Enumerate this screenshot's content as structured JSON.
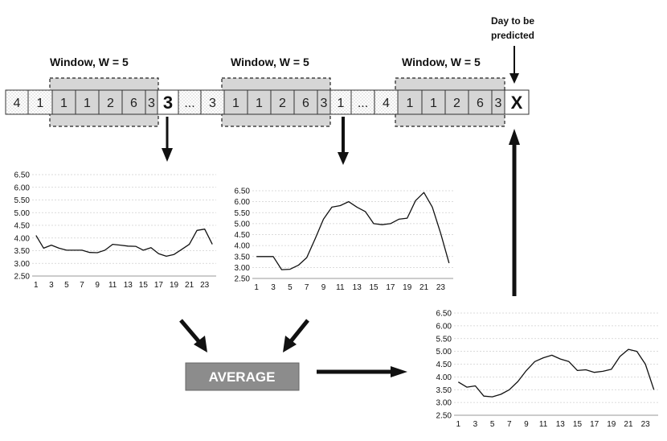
{
  "prediction_label": [
    "Day to be",
    "predicted"
  ],
  "window_label": "Window, W = 5",
  "sequence": [
    "4",
    "1",
    "1",
    "1",
    "2",
    "6",
    "3",
    "3",
    "...",
    "3",
    "1",
    "1",
    "2",
    "6",
    "3",
    "1",
    "...",
    "4",
    "1",
    "1",
    "2",
    "6",
    "3",
    "X"
  ],
  "average_label": "AVERAGE",
  "colors": {
    "window_fill": "#d6d6d6",
    "cell_fill": "#ffffff",
    "avg_fill": "#8c8c8c",
    "line": "#111111",
    "grid": "#cfcfcf"
  },
  "chart_data": [
    {
      "type": "line",
      "x": [
        1,
        2,
        3,
        4,
        5,
        6,
        7,
        8,
        9,
        10,
        11,
        12,
        13,
        14,
        15,
        16,
        17,
        18,
        19,
        20,
        21,
        22,
        23,
        24
      ],
      "xticks": [
        "1",
        "3",
        "5",
        "7",
        "9",
        "11",
        "13",
        "15",
        "17",
        "19",
        "21",
        "23"
      ],
      "yticks": [
        "2.50",
        "3.00",
        "3.50",
        "4.00",
        "4.50",
        "5.00",
        "5.50",
        "6.00",
        "6.50"
      ],
      "ylim": [
        2.5,
        6.5
      ],
      "grid": true,
      "series": [
        {
          "values": [
            4.1,
            3.6,
            3.72,
            3.6,
            3.52,
            3.52,
            3.52,
            3.43,
            3.42,
            3.52,
            3.75,
            3.72,
            3.68,
            3.67,
            3.52,
            3.62,
            3.38,
            3.28,
            3.35,
            3.55,
            3.75,
            4.3,
            4.35,
            3.75
          ]
        }
      ]
    },
    {
      "type": "line",
      "x": [
        1,
        2,
        3,
        4,
        5,
        6,
        7,
        8,
        9,
        10,
        11,
        12,
        13,
        14,
        15,
        16,
        17,
        18,
        19,
        20,
        21,
        22,
        23,
        24
      ],
      "xticks": [
        "1",
        "3",
        "5",
        "7",
        "9",
        "11",
        "13",
        "15",
        "17",
        "19",
        "21",
        "23"
      ],
      "yticks": [
        "2.50",
        "3.00",
        "3.50",
        "4.00",
        "4.50",
        "5.00",
        "5.50",
        "6.00",
        "6.50"
      ],
      "ylim": [
        2.5,
        6.5
      ],
      "grid": true,
      "series": [
        {
          "values": [
            3.5,
            3.5,
            3.5,
            2.9,
            2.92,
            3.1,
            3.45,
            4.3,
            5.2,
            5.75,
            5.82,
            6.0,
            5.75,
            5.55,
            5.0,
            4.95,
            5.0,
            5.2,
            5.25,
            6.05,
            6.42,
            5.75,
            4.55,
            3.2
          ]
        }
      ]
    },
    {
      "type": "line",
      "x": [
        1,
        2,
        3,
        4,
        5,
        6,
        7,
        8,
        9,
        10,
        11,
        12,
        13,
        14,
        15,
        16,
        17,
        18,
        19,
        20,
        21,
        22,
        23,
        24
      ],
      "xticks": [
        "1",
        "3",
        "5",
        "7",
        "9",
        "11",
        "13",
        "15",
        "17",
        "19",
        "21",
        "23"
      ],
      "yticks": [
        "2.50",
        "3.00",
        "3.50",
        "4.00",
        "4.50",
        "5.00",
        "5.50",
        "6.00",
        "6.50"
      ],
      "ylim": [
        2.5,
        6.5
      ],
      "grid": true,
      "series": [
        {
          "values": [
            3.8,
            3.6,
            3.65,
            3.25,
            3.22,
            3.32,
            3.5,
            3.82,
            4.25,
            4.6,
            4.75,
            4.85,
            4.7,
            4.6,
            4.25,
            4.28,
            4.18,
            4.22,
            4.3,
            4.8,
            5.08,
            5.0,
            4.5,
            3.5
          ]
        }
      ]
    }
  ]
}
